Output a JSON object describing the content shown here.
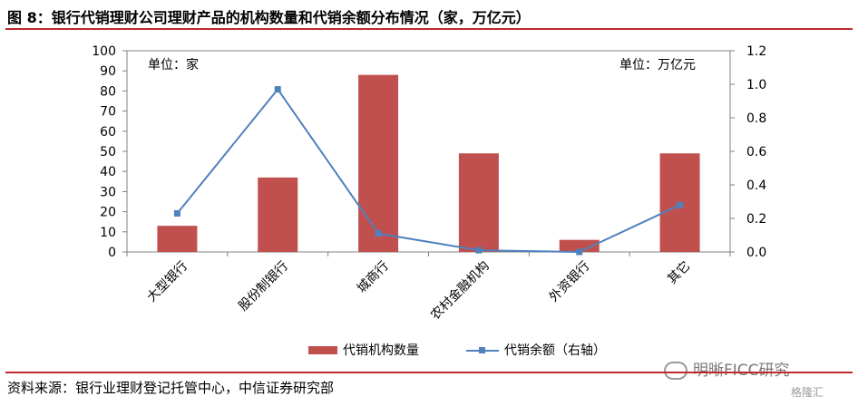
{
  "title": "图 8：银行代销理财公司理财产品的机构数量和代销余额分布情况（家，万亿元）",
  "unit_left": "单位：家",
  "unit_right": "单位：万亿元",
  "source": "资料来源：银行业理财登记托管中心，中信证券研究部",
  "watermark": "明晰FICC研究",
  "corner_logo": "格隆汇",
  "chart_data": {
    "type": "bar",
    "categories": [
      "大型银行",
      "股份制银行",
      "城商行",
      "农村金融机构",
      "外资银行",
      "其它"
    ],
    "series": [
      {
        "name": "代销机构数量",
        "type": "bar",
        "axis": "left",
        "color": "#c0504d",
        "values": [
          13,
          37,
          88,
          49,
          6,
          49
        ]
      },
      {
        "name": "代销余额（右轴）",
        "type": "line",
        "axis": "right",
        "color": "#4f81bd",
        "values": [
          0.23,
          0.97,
          0.11,
          0.01,
          0.0,
          0.28
        ]
      }
    ],
    "y_left": {
      "min": 0,
      "max": 100,
      "ticks": [
        0,
        10,
        20,
        30,
        40,
        50,
        60,
        70,
        80,
        90,
        100
      ]
    },
    "y_right": {
      "min": 0,
      "max": 1.2,
      "ticks": [
        "0.0",
        "0.2",
        "0.4",
        "0.6",
        "0.8",
        "1.0",
        "1.2"
      ]
    },
    "legend": "bottom"
  }
}
